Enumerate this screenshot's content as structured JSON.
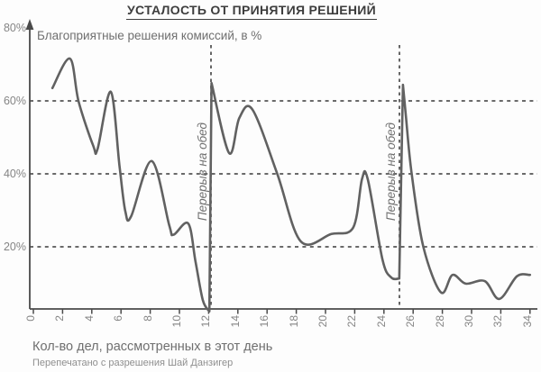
{
  "colors": {
    "title": "#3d3d3d",
    "axis": "#4a4a4a",
    "grid": "#555555",
    "curve": "#616161",
    "text": "#6f6f6f",
    "tick": "#858585",
    "muted": "#8f8f8f",
    "background": "#fdfdfd"
  },
  "chart_data": {
    "type": "line",
    "title": "УСТАЛОСТЬ ОТ ПРИНЯТИЯ РЕШЕНИЙ",
    "ylabel_inline": "Благоприятные решения комиссий, в %",
    "xlabel": "Кол-во дел, рассмотренных в этот день",
    "source_note": "Перепечатано с разрешения Шай Данзигер",
    "break_label": "Перерыв на обед",
    "legend": "none",
    "grid": "dashed-horizontal",
    "xlim": [
      0,
      34.8
    ],
    "ylim": [
      0,
      82
    ],
    "x_ticks": [
      0,
      2,
      4,
      6,
      8,
      10,
      12,
      14,
      16,
      18,
      20,
      22,
      24,
      26,
      28,
      30,
      32,
      34
    ],
    "y_ticks": [
      {
        "value": 80,
        "label": "80%"
      },
      {
        "value": 60,
        "label": "60%"
      },
      {
        "value": 40,
        "label": "40%"
      },
      {
        "value": 20,
        "label": "20%"
      }
    ],
    "grid_y_values": [
      60,
      40,
      20
    ],
    "break_lines_x": [
      12.16,
      25.06
    ],
    "series": [
      {
        "name": "favorable-parole-decisions-percent",
        "segments": [
          [
            [
              1.3,
              63.5
            ],
            [
              2.5,
              71.6
            ],
            [
              3.1,
              59.8
            ],
            [
              4.1,
              47.7
            ],
            [
              4.4,
              46.9
            ],
            [
              5.3,
              62.5
            ],
            [
              5.9,
              42.0
            ],
            [
              6.3,
              29.6
            ],
            [
              6.7,
              28.4
            ],
            [
              8.1,
              43.5
            ],
            [
              9.3,
              25.9
            ],
            [
              9.6,
              23.3
            ],
            [
              10.6,
              26.4
            ],
            [
              11.1,
              16.0
            ],
            [
              11.6,
              5.4
            ],
            [
              12.05,
              2.3
            ]
          ],
          [
            [
              12.2,
              64.9
            ],
            [
              13.4,
              45.7
            ],
            [
              14.1,
              55.3
            ],
            [
              15.0,
              57.6
            ],
            [
              16.7,
              40.0
            ],
            [
              18.3,
              21.5
            ],
            [
              20.4,
              23.5
            ],
            [
              21.9,
              25.3
            ],
            [
              22.5,
              38.6
            ],
            [
              22.9,
              38.4
            ],
            [
              23.9,
              16.5
            ],
            [
              24.5,
              11.6
            ],
            [
              25.05,
              11.3
            ]
          ],
          [
            [
              25.3,
              64.4
            ],
            [
              25.5,
              56.0
            ],
            [
              25.9,
              40.0
            ],
            [
              26.7,
              20.0
            ],
            [
              27.9,
              7.5
            ],
            [
              28.7,
              12.3
            ],
            [
              29.6,
              9.9
            ],
            [
              30.9,
              10.6
            ],
            [
              31.9,
              5.7
            ],
            [
              33.1,
              11.9
            ],
            [
              34.0,
              12.3
            ]
          ]
        ]
      }
    ]
  }
}
